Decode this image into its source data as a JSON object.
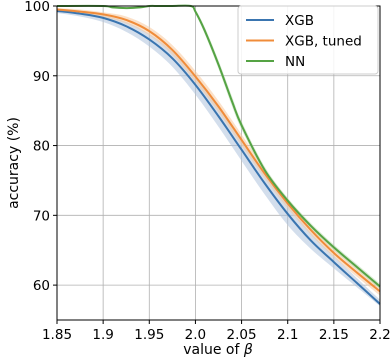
{
  "chart_data": {
    "type": "line",
    "xlabel": "value of β",
    "ylabel": "accuracy (%)",
    "xlim": [
      1.85,
      2.2
    ],
    "ylim": [
      55,
      100
    ],
    "xticks": [
      "1.85",
      "1.9",
      "1.95",
      "2.0",
      "2.05",
      "2.1",
      "2.15",
      "2.2"
    ],
    "xtick_values": [
      1.85,
      1.9,
      1.95,
      2.0,
      2.05,
      2.1,
      2.15,
      2.2
    ],
    "yticks": [
      "60",
      "70",
      "80",
      "90",
      "100"
    ],
    "ytick_values": [
      60,
      70,
      80,
      90,
      100
    ],
    "grid": true,
    "legend_position": "top-right",
    "x": [
      1.85,
      1.875,
      1.9,
      1.925,
      1.95,
      1.975,
      2.0,
      2.025,
      2.05,
      2.075,
      2.1,
      2.125,
      2.15,
      2.175,
      2.2
    ],
    "series": [
      {
        "name": "XGB",
        "color": "#3a75b0",
        "band_color": "#aec2dc",
        "values": [
          99.3,
          98.9,
          98.3,
          97.1,
          95.2,
          92.5,
          88.7,
          84.2,
          79.4,
          74.6,
          70.2,
          66.4,
          63.3,
          60.3,
          57.3
        ],
        "lower": [
          99.0,
          98.5,
          97.7,
          96.3,
          94.2,
          91.3,
          87.3,
          82.7,
          77.8,
          73.0,
          68.6,
          65.2,
          62.4,
          59.7,
          57.0
        ],
        "upper": [
          99.5,
          99.2,
          98.7,
          97.7,
          96.0,
          93.5,
          89.9,
          85.5,
          80.8,
          76.0,
          71.5,
          67.5,
          64.2,
          61.0,
          57.9
        ]
      },
      {
        "name": "XGB, tuned",
        "color": "#f08c3a",
        "band_color": "#f8c89c",
        "values": [
          99.5,
          99.2,
          98.8,
          98.0,
          96.4,
          93.7,
          89.9,
          85.6,
          80.8,
          76.0,
          71.7,
          67.9,
          64.6,
          61.8,
          59.1
        ],
        "lower": [
          99.3,
          98.9,
          98.4,
          97.5,
          95.8,
          93.0,
          89.1,
          84.8,
          80.0,
          75.3,
          71.0,
          67.2,
          64.0,
          61.2,
          58.5
        ],
        "upper": [
          99.7,
          99.5,
          99.1,
          98.5,
          97.0,
          94.4,
          90.7,
          86.4,
          81.6,
          76.7,
          72.4,
          68.6,
          65.2,
          62.4,
          59.7
        ]
      },
      {
        "name": "NN",
        "color": "#55a344",
        "band_color": "#bcdcb3",
        "x": [
          1.85,
          1.9,
          1.91,
          1.925,
          1.94,
          1.95,
          1.96,
          1.975,
          1.995,
          2.0,
          2.01,
          2.025,
          2.04,
          2.05,
          2.075,
          2.1,
          2.125,
          2.15,
          2.175,
          2.2
        ],
        "values": [
          100.0,
          100.0,
          99.8,
          99.7,
          99.8,
          100.0,
          100.0,
          100.0,
          100.0,
          99.2,
          96.5,
          91.6,
          86.2,
          82.9,
          76.5,
          72.1,
          68.5,
          65.4,
          62.6,
          59.8
        ],
        "lower": [
          99.9,
          99.9,
          99.7,
          99.6,
          99.7,
          99.9,
          99.9,
          99.9,
          99.9,
          98.9,
          96.0,
          91.0,
          85.5,
          82.3,
          76.0,
          71.7,
          68.1,
          65.0,
          62.2,
          59.4
        ],
        "upper": [
          100.0,
          100.0,
          99.9,
          99.8,
          99.9,
          100.0,
          100.0,
          100.0,
          100.0,
          99.5,
          97.0,
          92.2,
          86.9,
          83.5,
          77.0,
          72.5,
          68.9,
          65.8,
          63.0,
          60.2
        ]
      }
    ]
  }
}
